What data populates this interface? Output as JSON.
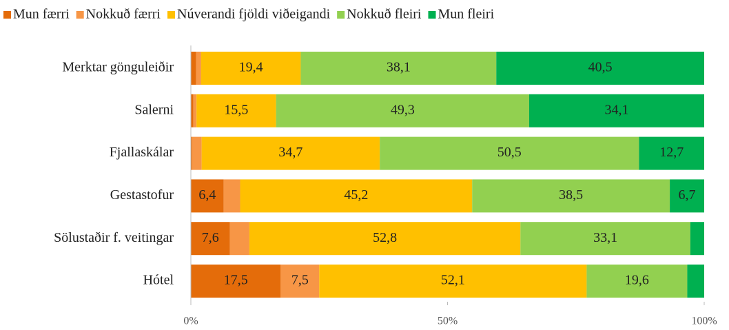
{
  "chart_data": {
    "type": "stacked-bar-horizontal",
    "categories": [
      "Merktar gönguleiðir",
      "Salerni",
      "Fjallaskálar",
      "Gestastofur",
      "Sölustaðir f. veitingar",
      "Hótel"
    ],
    "series": [
      {
        "name": "Mun færri",
        "color": "#E46C0A",
        "values": [
          1.0,
          0.5,
          0.2,
          6.4,
          7.6,
          17.5
        ],
        "value_labels": [
          null,
          null,
          null,
          "6,4",
          "7,6",
          "17,5"
        ]
      },
      {
        "name": "Nokkuð færri",
        "color": "#F79646",
        "values": [
          1.0,
          0.6,
          1.9,
          3.2,
          3.8,
          7.5
        ],
        "value_labels": [
          null,
          null,
          null,
          null,
          null,
          "7,5"
        ]
      },
      {
        "name": "Núverandi fjöldi viðeigandi",
        "color": "#FFC000",
        "values": [
          19.4,
          15.5,
          34.7,
          45.2,
          52.8,
          52.1
        ],
        "value_labels": [
          "19,4",
          "15,5",
          "34,7",
          "45,2",
          "52,8",
          "52,1"
        ]
      },
      {
        "name": "Nokkuð fleiri",
        "color": "#92D050",
        "values": [
          38.1,
          49.3,
          50.5,
          38.5,
          33.1,
          19.6
        ],
        "value_labels": [
          "38,1",
          "49,3",
          "50,5",
          "38,5",
          "33,1",
          "19,6"
        ]
      },
      {
        "name": "Mun fleiri",
        "color": "#00B050",
        "values": [
          40.5,
          34.1,
          12.7,
          6.7,
          2.7,
          3.3
        ],
        "value_labels": [
          "40,5",
          "34,1",
          "12,7",
          "6,7",
          null,
          null
        ]
      }
    ],
    "xlim": [
      0,
      100
    ],
    "xticks": [
      {
        "value": 0,
        "label": "0%"
      },
      {
        "value": 50,
        "label": "50%"
      },
      {
        "value": 100,
        "label": "100%"
      }
    ],
    "legend": "top"
  }
}
